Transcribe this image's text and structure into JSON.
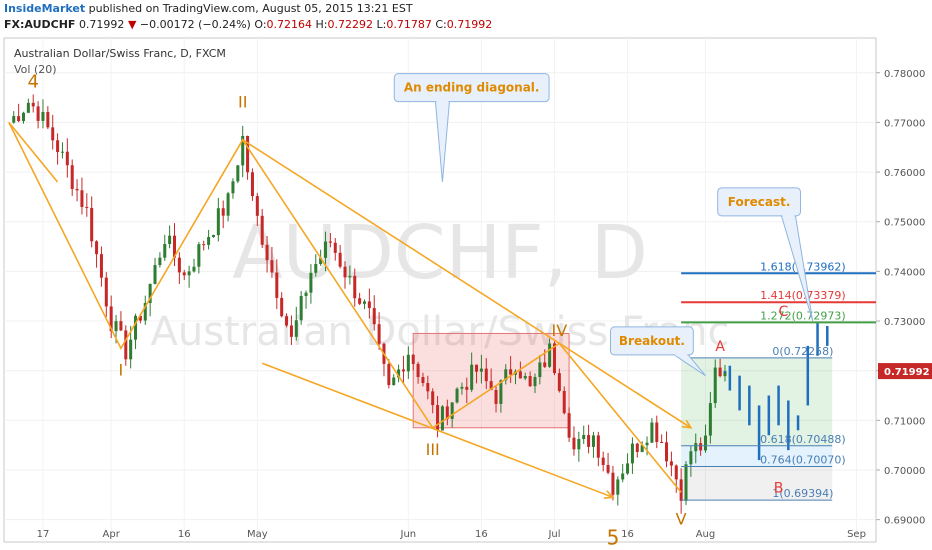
{
  "header": {
    "publisher": "InsideMarket",
    "published_text": "published on TradingView.com, August 05, 2015 13:21 EST",
    "symbol": "FX:AUDCHF",
    "last": "0.71992",
    "change_arrow": "▼",
    "change": "−0.00172 (−0.24%)",
    "o_label": "O:",
    "o_value": "0.72164",
    "h_label": "H:",
    "h_value": "0.72292",
    "l_label": "L:",
    "l_value": "0.71787",
    "c_label": "C:",
    "c_value": "0.71992"
  },
  "legend": {
    "title": "Australian Dollar/Swiss Franc, D, FXCM",
    "vol": "Vol (20)"
  },
  "watermark": {
    "line1": "AUDCHF, D",
    "line2": "Australian Dollar/Swiss Franc"
  },
  "colors": {
    "up": "#2e7d32",
    "down": "#c62828",
    "orange": "#f5a623",
    "wave_label": "#c47400",
    "forecast": "#1f6fbf",
    "fib_1618": "#1f6fbf",
    "fib_1414": "#e53935",
    "fib_1272": "#43a047",
    "fib_grid": "#4a7fb5",
    "last_price_bg": "#c62828"
  },
  "chart_data": {
    "type": "candlestick",
    "instrument": "Australian Dollar/Swiss Franc, D, FXCM",
    "ylim": [
      0.6855,
      0.787
    ],
    "y_ticks": [
      "0.78000",
      "0.77000",
      "0.76000",
      "0.75000",
      "0.74000",
      "0.73000",
      "0.72000",
      "0.71000",
      "0.70000",
      "0.69000"
    ],
    "last_price": "0.71992",
    "x_ticks": [
      {
        "label": "17",
        "day": 17
      },
      {
        "label": "Apr",
        "day": 31
      },
      {
        "label": "16",
        "day": 46
      },
      {
        "label": "May",
        "day": 61
      },
      {
        "label": "Jun",
        "day": 92
      },
      {
        "label": "16",
        "day": 107
      },
      {
        "label": "Jul",
        "day": 122
      },
      {
        "label": "16",
        "day": 137
      },
      {
        "label": "Aug",
        "day": 153
      },
      {
        "label": "Sep",
        "day": 184
      }
    ],
    "x_range_days": [
      9,
      188
    ],
    "waypoints": [
      {
        "day": 10,
        "price": 0.77
      },
      {
        "day": 12,
        "price": 0.772
      },
      {
        "day": 14,
        "price": 0.7742
      },
      {
        "day": 16,
        "price": 0.7722
      },
      {
        "day": 20,
        "price": 0.765
      },
      {
        "day": 26,
        "price": 0.752
      },
      {
        "day": 31,
        "price": 0.73
      },
      {
        "day": 34,
        "price": 0.724
      },
      {
        "day": 38,
        "price": 0.734
      },
      {
        "day": 42,
        "price": 0.747
      },
      {
        "day": 46,
        "price": 0.739
      },
      {
        "day": 50,
        "price": 0.746
      },
      {
        "day": 55,
        "price": 0.754
      },
      {
        "day": 58,
        "price": 0.7668
      },
      {
        "day": 60,
        "price": 0.754
      },
      {
        "day": 64,
        "price": 0.74
      },
      {
        "day": 68,
        "price": 0.726
      },
      {
        "day": 72,
        "price": 0.74
      },
      {
        "day": 76,
        "price": 0.746
      },
      {
        "day": 80,
        "price": 0.738
      },
      {
        "day": 84,
        "price": 0.731
      },
      {
        "day": 88,
        "price": 0.716
      },
      {
        "day": 92,
        "price": 0.724
      },
      {
        "day": 95,
        "price": 0.718
      },
      {
        "day": 98,
        "price": 0.709
      },
      {
        "day": 102,
        "price": 0.716
      },
      {
        "day": 106,
        "price": 0.72
      },
      {
        "day": 110,
        "price": 0.715
      },
      {
        "day": 114,
        "price": 0.722
      },
      {
        "day": 117,
        "price": 0.716
      },
      {
        "day": 121,
        "price": 0.724
      },
      {
        "day": 123,
        "price": 0.718
      },
      {
        "day": 126,
        "price": 0.704
      },
      {
        "day": 130,
        "price": 0.707
      },
      {
        "day": 134,
        "price": 0.697
      },
      {
        "day": 138,
        "price": 0.704
      },
      {
        "day": 142,
        "price": 0.709
      },
      {
        "day": 144,
        "price": 0.706
      },
      {
        "day": 148,
        "price": 0.696
      },
      {
        "day": 150,
        "price": 0.704
      },
      {
        "day": 153,
        "price": 0.705
      },
      {
        "day": 155,
        "price": 0.72
      },
      {
        "day": 157,
        "price": 0.7199
      }
    ],
    "highlight_box": {
      "x0": 93,
      "x1": 125,
      "y0": 0.7085,
      "y1": 0.7275
    },
    "wave_labels": [
      {
        "text": "4",
        "day": 15,
        "price": 0.777,
        "color": "wave_label",
        "size": 18
      },
      {
        "text": "I",
        "day": 33,
        "price": 0.719,
        "color": "wave_label",
        "size": 16
      },
      {
        "text": "II",
        "day": 58,
        "price": 0.773,
        "color": "wave_label",
        "size": 16
      },
      {
        "text": "III",
        "day": 97,
        "price": 0.703,
        "color": "wave_label",
        "size": 16
      },
      {
        "text": "IV",
        "day": 123,
        "price": 0.727,
        "color": "wave_label",
        "size": 16
      },
      {
        "text": "5",
        "day": 134,
        "price": 0.685,
        "color": "wave_label",
        "size": 20
      },
      {
        "text": "V",
        "day": 148,
        "price": 0.689,
        "color": "wave_label",
        "size": 16
      },
      {
        "text": "A",
        "day": 156,
        "price": 0.724,
        "color": "fib_1414",
        "size": 14
      },
      {
        "text": "B",
        "day": 168,
        "price": 0.6955,
        "color": "fib_1414",
        "size": 14
      },
      {
        "text": "C",
        "day": 169,
        "price": 0.731,
        "color": "fib_1414",
        "size": 14
      }
    ],
    "wave_path": [
      {
        "day": 10,
        "price": 0.77
      },
      {
        "day": 33,
        "price": 0.7245
      },
      {
        "day": 58,
        "price": 0.7665
      },
      {
        "day": 97,
        "price": 0.7085
      },
      {
        "day": 123,
        "price": 0.7255
      },
      {
        "day": 148,
        "price": 0.6955
      }
    ],
    "channel_lines": [
      {
        "from": {
          "day": 58,
          "price": 0.7665
        },
        "to": {
          "day": 150,
          "price": 0.7085
        }
      },
      {
        "from": {
          "day": 62,
          "price": 0.7215
        },
        "to": {
          "day": 134,
          "price": 0.6945
        }
      },
      {
        "from": {
          "day": 10,
          "price": 0.77
        },
        "to": {
          "day": 20,
          "price": 0.758
        }
      }
    ],
    "fib": {
      "x0": 148,
      "x1": 179,
      "zone_top": 0.72258,
      "zone_bottom": 0.69394,
      "levels": [
        {
          "label": "1.618(0.73962)",
          "price": 0.73962,
          "color": "fib_1618",
          "bold": true,
          "extend": true
        },
        {
          "label": "1.414(0.73379)",
          "price": 0.73379,
          "color": "fib_1414",
          "bold": true,
          "extend": true
        },
        {
          "label": "1.272(0.72973)",
          "price": 0.72973,
          "color": "fib_1272",
          "bold": true,
          "extend": true
        },
        {
          "label": "0(0.72258)",
          "price": 0.72258,
          "color": "fib_grid",
          "bold": false,
          "extend": false
        },
        {
          "label": "0.618(0.70488)",
          "price": 0.70488,
          "color": "fib_grid",
          "bold": false,
          "extend": false
        },
        {
          "label": "0.764(0.70070)",
          "price": 0.7007,
          "color": "fib_grid",
          "bold": false,
          "extend": false
        },
        {
          "label": "1(0.69394)",
          "price": 0.69394,
          "color": "fib_grid",
          "bold": false,
          "extend": false
        }
      ]
    },
    "forecast_bars": [
      {
        "day": 158,
        "high": 0.721,
        "low": 0.716
      },
      {
        "day": 160,
        "high": 0.719,
        "low": 0.712
      },
      {
        "day": 162,
        "high": 0.717,
        "low": 0.709
      },
      {
        "day": 164,
        "high": 0.713,
        "low": 0.702
      },
      {
        "day": 166,
        "high": 0.715,
        "low": 0.707
      },
      {
        "day": 168,
        "high": 0.717,
        "low": 0.709
      },
      {
        "day": 170,
        "high": 0.714,
        "low": 0.704
      },
      {
        "day": 172,
        "high": 0.711,
        "low": 0.708
      },
      {
        "day": 174,
        "high": 0.725,
        "low": 0.713
      },
      {
        "day": 176,
        "high": 0.7297,
        "low": 0.723
      },
      {
        "day": 178,
        "high": 0.729,
        "low": 0.725
      }
    ],
    "callouts": [
      {
        "text": "An ending diagonal.",
        "day": 105,
        "price": 0.777,
        "tail_day": 99,
        "tail_price": 0.758
      },
      {
        "text": "Forecast.",
        "day": 164,
        "price": 0.754,
        "tail_day": 175,
        "tail_price": 0.73
      },
      {
        "text": "Breakout.",
        "day": 142,
        "price": 0.726,
        "tail_day": 153,
        "tail_price": 0.719
      }
    ]
  }
}
